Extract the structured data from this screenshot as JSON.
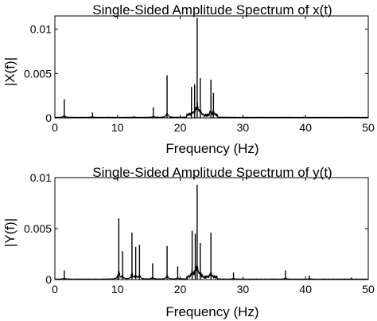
{
  "chart_data": [
    {
      "type": "line",
      "title": "Single-Sided Amplitude Spectrum of x(t)",
      "xlabel": "Frequency (Hz)",
      "ylabel": "|X(f)|",
      "xlim": [
        0,
        50
      ],
      "ylim": [
        0,
        0.0115
      ],
      "xticks": [
        0,
        10,
        20,
        30,
        40,
        50
      ],
      "yticks": [
        0,
        0.005,
        0.01
      ],
      "xtick_labels": [
        "0",
        "10",
        "20",
        "30",
        "40",
        "50"
      ],
      "ytick_labels": [
        "0",
        "0.005",
        "0.01"
      ],
      "grid": false,
      "series": [
        {
          "peaks": [
            {
              "x": 1.5,
              "y": 0.0021
            },
            {
              "x": 6.0,
              "y": 0.0006
            },
            {
              "x": 12.6,
              "y": 0.0002
            },
            {
              "x": 15.7,
              "y": 0.0012
            },
            {
              "x": 17.9,
              "y": 0.0048
            },
            {
              "x": 21.8,
              "y": 0.0035
            },
            {
              "x": 22.3,
              "y": 0.0038
            },
            {
              "x": 22.7,
              "y": 0.0113
            },
            {
              "x": 23.2,
              "y": 0.0045
            },
            {
              "x": 24.9,
              "y": 0.0043
            },
            {
              "x": 25.3,
              "y": 0.0028
            }
          ]
        }
      ]
    },
    {
      "type": "line",
      "title": "Single-Sided Amplitude Spectrum of y(t)",
      "xlabel": "Frequency (Hz)",
      "ylabel": "|Y(f)|",
      "xlim": [
        0,
        50
      ],
      "ylim": [
        0,
        0.01
      ],
      "xticks": [
        0,
        10,
        20,
        30,
        40,
        50
      ],
      "yticks": [
        0,
        0.005,
        0.01
      ],
      "xtick_labels": [
        "0",
        "10",
        "20",
        "30",
        "40",
        "50"
      ],
      "ytick_labels": [
        "0",
        "0.005",
        "0.01"
      ],
      "grid": false,
      "series": [
        {
          "peaks": [
            {
              "x": 1.5,
              "y": 0.0009
            },
            {
              "x": 10.2,
              "y": 0.006
            },
            {
              "x": 10.8,
              "y": 0.0028
            },
            {
              "x": 12.3,
              "y": 0.0046
            },
            {
              "x": 12.9,
              "y": 0.0032
            },
            {
              "x": 13.5,
              "y": 0.0034
            },
            {
              "x": 15.6,
              "y": 0.0016
            },
            {
              "x": 17.9,
              "y": 0.0033
            },
            {
              "x": 19.6,
              "y": 0.0013
            },
            {
              "x": 21.9,
              "y": 0.0048
            },
            {
              "x": 22.4,
              "y": 0.0045
            },
            {
              "x": 22.7,
              "y": 0.0093
            },
            {
              "x": 23.2,
              "y": 0.0036
            },
            {
              "x": 24.9,
              "y": 0.0046
            },
            {
              "x": 28.5,
              "y": 0.0007
            },
            {
              "x": 36.8,
              "y": 0.0009
            },
            {
              "x": 40.6,
              "y": 0.0004
            },
            {
              "x": 47.3,
              "y": 0.0002
            }
          ]
        }
      ]
    }
  ]
}
